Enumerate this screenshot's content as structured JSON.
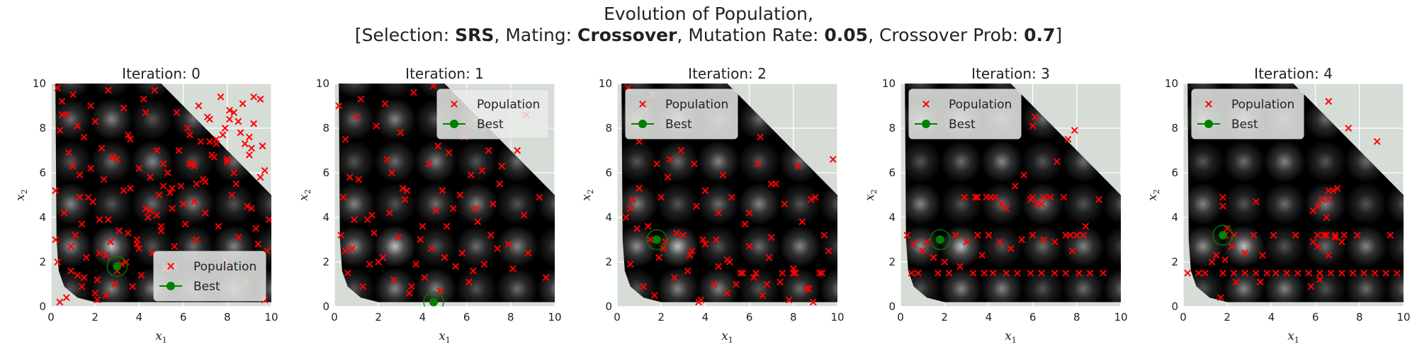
{
  "figure": {
    "title_line1": "Evolution of Population,",
    "title_line2": {
      "open": "[Selection: ",
      "selection": "SRS",
      "mating_label": ", Mating: ",
      "mating": "Crossover",
      "mutation_label": ", Mutation Rate: ",
      "mutation_rate": "0.05",
      "crossover_label": ", Crossover Prob: ",
      "crossover_prob": "0.7",
      "close": "]"
    }
  },
  "colors": {
    "population": "#ff0000",
    "best": "#008000",
    "axes_bg": "#d6dcd6",
    "grid": "#ffffff",
    "field_dark": "#000000",
    "peak_light": "#ffffff"
  },
  "chart_data": [
    {
      "type": "scatter",
      "title": "Iteration: 0",
      "xlabel": "x1",
      "ylabel": "x2",
      "xlim": [
        0,
        10
      ],
      "ylim": [
        0,
        10
      ],
      "xticks": [
        "0",
        "2",
        "4",
        "6",
        "8",
        "10"
      ],
      "yticks": [
        "0",
        "2",
        "4",
        "6",
        "8",
        "10"
      ],
      "grid": true,
      "legend": {
        "placement": "lower-right",
        "entries": [
          "Population",
          "Best"
        ]
      },
      "series": [
        {
          "name": "Population",
          "marker": "x",
          "x": [
            0.3,
            0.5,
            0.7,
            1.0,
            1.2,
            1.5,
            1.8,
            2.0,
            2.3,
            2.6,
            3.0,
            3.3,
            3.6,
            4.0,
            4.2,
            4.5,
            4.8,
            5.1,
            5.4,
            5.7,
            6.0,
            6.3,
            6.6,
            7.0,
            7.3,
            7.6,
            7.9,
            8.2,
            8.5,
            8.8,
            9.1,
            9.4,
            9.7,
            9.9,
            0.4,
            0.8,
            1.3,
            1.7,
            2.2,
            2.7,
            3.2,
            3.7,
            4.1,
            4.6,
            5.0,
            5.5,
            5.9,
            6.4,
            6.8,
            7.2,
            7.7,
            8.1,
            8.6,
            9.0,
            9.5,
            0.2,
            0.6,
            1.1,
            1.6,
            2.1,
            2.5,
            2.9,
            3.4,
            3.9,
            4.4,
            4.9,
            5.3,
            5.8,
            6.2,
            6.7,
            7.1,
            7.5,
            8.0,
            8.4,
            8.9,
            9.3,
            9.8,
            0.3,
            0.9,
            1.4,
            1.9,
            2.4,
            2.8,
            3.5,
            4.3,
            4.7,
            5.2,
            5.6,
            6.1,
            6.5,
            6.9,
            7.4,
            7.8,
            8.3,
            8.7,
            9.2,
            9.6,
            1.0,
            2.0,
            3.0,
            4.0,
            5.0,
            6.0,
            7.0,
            8.0,
            9.0,
            0.5,
            1.5,
            2.5,
            3.5,
            4.5,
            5.5,
            6.5,
            7.5,
            8.5,
            9.5,
            0.7,
            1.2,
            2.2,
            3.1,
            4.3,
            5.1,
            6.3,
            7.2,
            8.1,
            9.2,
            0.4,
            1.8,
            3.3,
            4.8,
            6.6,
            7.9,
            8.8,
            9.7,
            1.3,
            2.6,
            3.9,
            5.6,
            7.4,
            8.3,
            9.1,
            0.2,
            0.9,
            1.4,
            2.1,
            3.6
          ],
          "y": [
            9.8,
            9.2,
            8.6,
            9.5,
            8.1,
            7.6,
            9.0,
            8.3,
            7.1,
            9.7,
            6.6,
            8.9,
            7.5,
            6.2,
            9.3,
            5.8,
            7.0,
            6.4,
            5.1,
            8.7,
            4.6,
            7.7,
            5.5,
            4.2,
            6.8,
            3.6,
            8.0,
            5.0,
            3.1,
            7.3,
            4.4,
            2.8,
            6.1,
            3.9,
            7.9,
            6.9,
            5.9,
            4.9,
            3.9,
            2.9,
            1.9,
            0.9,
            1.4,
            2.4,
            3.4,
            4.4,
            5.4,
            6.4,
            7.4,
            8.4,
            9.4,
            8.8,
            7.8,
            6.8,
            5.8,
            5.2,
            4.2,
            3.2,
            2.2,
            1.2,
            0.5,
            1.0,
            2.0,
            3.0,
            4.0,
            5.0,
            6.0,
            7.0,
            8.0,
            9.0,
            8.5,
            7.5,
            6.5,
            5.5,
            4.5,
            3.5,
            2.5,
            2.0,
            2.7,
            3.7,
            4.7,
            5.7,
            6.7,
            7.7,
            8.7,
            9.7,
            1.7,
            2.7,
            3.7,
            4.7,
            5.7,
            6.7,
            7.7,
            8.7,
            9.1,
            8.2,
            7.2,
            6.3,
            0.6,
            1.6,
            2.6,
            3.6,
            4.6,
            5.6,
            6.6,
            7.6,
            8.6,
            1.3,
            2.3,
            3.3,
            4.3,
            5.3,
            6.3,
            7.3,
            8.3,
            9.3,
            0.4,
            1.4,
            2.4,
            3.4,
            4.4,
            5.4,
            6.4,
            7.4,
            8.4,
            9.4,
            0.2,
            6.2,
            5.2,
            4.1,
            3.0,
            2.1,
            1.1,
            0.3,
            4.9,
            3.9,
            2.8,
            1.8,
            0.8,
            6.0,
            7.1,
            3.0,
            1.6,
            0.9,
            0.3,
            5.3
          ]
        },
        {
          "name": "Best",
          "marker": "o",
          "x": [
            3.0
          ],
          "y": [
            1.8
          ]
        }
      ]
    },
    {
      "type": "scatter",
      "title": "Iteration: 1",
      "xlabel": "x1",
      "ylabel": "x2",
      "xlim": [
        0,
        10
      ],
      "ylim": [
        0,
        10
      ],
      "xticks": [
        "0",
        "2",
        "4",
        "6",
        "8",
        "10"
      ],
      "yticks": [
        "0",
        "2",
        "4",
        "6",
        "8",
        "10"
      ],
      "grid": true,
      "legend": {
        "placement": "upper-right",
        "entries": [
          "Population",
          "Best"
        ]
      },
      "series": [
        {
          "name": "Population",
          "marker": "x",
          "x": [
            0.2,
            0.5,
            1.2,
            1.9,
            2.4,
            3.0,
            3.6,
            4.3,
            0.4,
            1.1,
            1.7,
            2.6,
            3.3,
            4.0,
            4.7,
            5.4,
            6.2,
            7.0,
            7.6,
            8.3,
            0.3,
            0.8,
            1.5,
            2.2,
            2.9,
            3.7,
            4.4,
            5.1,
            5.8,
            6.5,
            7.2,
            7.9,
            8.6,
            9.3,
            0.6,
            1.3,
            2.0,
            2.7,
            3.4,
            4.1,
            4.8,
            5.5,
            6.1,
            6.8,
            7.4,
            8.1,
            8.8,
            9.6,
            1.0,
            2.3,
            3.1,
            4.5,
            5.2,
            6.0,
            6.7,
            7.5,
            0.9,
            1.8,
            3.2,
            4.6,
            5.7,
            6.4,
            7.1,
            0.7,
            2.5,
            3.9,
            5.0,
            6.3,
            0.5,
            1.6,
            3.5,
            4.9,
            8.7,
            5.9
          ],
          "y": [
            9.0,
            7.5,
            9.3,
            8.1,
            6.6,
            7.8,
            9.6,
            6.4,
            4.9,
            5.7,
            4.1,
            6.0,
            5.2,
            3.6,
            7.2,
            4.4,
            5.9,
            7.0,
            6.3,
            7.0,
            3.2,
            2.6,
            3.9,
            2.2,
            3.1,
            1.9,
            2.6,
            3.6,
            2.4,
            3.8,
            4.6,
            2.8,
            4.1,
            4.9,
            1.5,
            0.9,
            2.0,
            1.2,
            0.6,
            1.3,
            0.7,
            1.8,
            1.1,
            1.9,
            2.6,
            1.7,
            2.4,
            1.3,
            8.5,
            9.1,
            5.3,
            9.9,
            6.9,
            8.2,
            6.1,
            5.5,
            3.9,
            3.3,
            4.8,
            4.3,
            5.0,
            4.4,
            3.2,
            5.8,
            4.2,
            3.0,
            2.2,
            1.6,
            2.5,
            1.9,
            0.9,
            5.2,
            8.6,
            7.6
          ]
        },
        {
          "name": "Best",
          "marker": "o",
          "x": [
            4.5
          ],
          "y": [
            0.2
          ]
        }
      ]
    },
    {
      "type": "scatter",
      "title": "Iteration: 2",
      "xlabel": "x1",
      "ylabel": "x2",
      "xlim": [
        0,
        10
      ],
      "ylim": [
        0,
        10
      ],
      "xticks": [
        "0",
        "2",
        "4",
        "6",
        "8",
        "10"
      ],
      "yticks": [
        "0",
        "2",
        "4",
        "6",
        "8",
        "10"
      ],
      "grid": true,
      "legend": {
        "placement": "upper-left",
        "entries": [
          "Population",
          "Best"
        ]
      },
      "series": [
        {
          "name": "Population",
          "marker": "x",
          "x": [
            0.5,
            0.7,
            1.0,
            1.3,
            1.8,
            2.3,
            2.9,
            3.5,
            4.0,
            4.6,
            5.2,
            5.8,
            6.4,
            7.0,
            7.6,
            8.2,
            8.8,
            9.4,
            0.4,
            0.9,
            1.5,
            2.1,
            2.7,
            3.3,
            3.9,
            4.5,
            5.1,
            5.7,
            6.3,
            6.9,
            7.5,
            8.1,
            8.7,
            9.3,
            0.6,
            1.2,
            1.9,
            2.6,
            3.2,
            3.8,
            4.4,
            5.0,
            5.6,
            6.2,
            6.8,
            7.4,
            8.0,
            8.6,
            9.2,
            0.8,
            1.6,
            2.4,
            3.6,
            4.8,
            6.0,
            7.2,
            8.4,
            9.6,
            1.0,
            2.0,
            3.0,
            4.0,
            5.0,
            6.0,
            7.0,
            8.0,
            9.0,
            0.6,
            1.4,
            2.2,
            3.4,
            4.6,
            5.4,
            6.6,
            7.8,
            8.9,
            9.8,
            1.7,
            3.7,
            6.5
          ],
          "y": [
            9.8,
            4.8,
            7.4,
            8.8,
            6.4,
            5.8,
            7.0,
            6.4,
            5.2,
            4.2,
            4.9,
            3.7,
            6.4,
            5.5,
            4.6,
            6.3,
            4.8,
            3.2,
            4.0,
            3.5,
            3.0,
            2.6,
            3.3,
            2.3,
            3.0,
            3.0,
            2.0,
            1.5,
            1.5,
            2.2,
            1.5,
            1.5,
            0.8,
            1.5,
            1.9,
            0.9,
            2.2,
            1.3,
            1.6,
            0.3,
            1.0,
            0.6,
            1.5,
            1.3,
            1.0,
            1.1,
            1.5,
            0.8,
            1.5,
            8.0,
            9.5,
            6.6,
            4.5,
            5.9,
            4.2,
            5.5,
            3.8,
            2.5,
            5.3,
            4.9,
            3.2,
            2.8,
            2.1,
            2.7,
            3.1,
            1.7,
            4.9,
            4.4,
            3.6,
            2.9,
            2.5,
            1.8,
            1.0,
            0.5,
            0.3,
            0.2,
            6.6,
            0.5,
            0.2,
            7.6
          ],
          "x_extra": []
        },
        {
          "name": "Best",
          "marker": "o",
          "x": [
            1.8
          ],
          "y": [
            3.0
          ]
        }
      ]
    },
    {
      "type": "scatter",
      "title": "Iteration: 3",
      "xlabel": "x1",
      "ylabel": "x2",
      "xlim": [
        0,
        10
      ],
      "ylim": [
        0,
        10
      ],
      "xticks": [
        "0",
        "2",
        "4",
        "6",
        "8",
        "10"
      ],
      "yticks": [
        "0",
        "2",
        "4",
        "6",
        "8",
        "10"
      ],
      "grid": true,
      "legend": {
        "placement": "upper-left",
        "entries": [
          "Population",
          "Best"
        ]
      },
      "series": [
        {
          "name": "Population",
          "marker": "x",
          "x": [
            0.3,
            0.5,
            0.8,
            1.2,
            1.7,
            2.2,
            2.7,
            3.3,
            3.8,
            4.2,
            4.8,
            5.3,
            5.9,
            6.4,
            7.0,
            7.5,
            8.1,
            8.6,
            9.2,
            0.6,
            1.0,
            1.5,
            2.0,
            2.5,
            3.0,
            3.5,
            4.0,
            4.5,
            5.0,
            5.5,
            6.0,
            6.5,
            7.0,
            7.5,
            8.0,
            3.9,
            4.3,
            4.8,
            6.0,
            6.2,
            6.5,
            6.8,
            7.4,
            7.7,
            8.3,
            3.5,
            4.1,
            4.6,
            5.9,
            6.4,
            7.1,
            7.9,
            9.0,
            2.9,
            3.4,
            5.2,
            6.1,
            7.8,
            8.4,
            6.0,
            7.6,
            3.7,
            5.6
          ],
          "y": [
            3.2,
            1.5,
            1.5,
            2.9,
            1.5,
            1.5,
            1.8,
            1.5,
            1.5,
            1.5,
            1.5,
            1.5,
            1.5,
            1.5,
            1.5,
            1.5,
            1.5,
            1.5,
            1.5,
            2.8,
            2.5,
            2.2,
            2.0,
            3.2,
            2.9,
            3.2,
            3.2,
            2.9,
            2.6,
            3.0,
            3.2,
            3.0,
            2.9,
            3.2,
            3.2,
            4.9,
            4.9,
            4.4,
            4.9,
            4.6,
            4.9,
            4.9,
            4.9,
            3.2,
            3.2,
            4.9,
            4.9,
            4.6,
            4.8,
            4.6,
            6.5,
            7.9,
            4.8,
            4.9,
            4.9,
            5.4,
            8.5,
            2.5,
            3.6,
            8.1,
            7.5,
            2.3,
            5.9
          ]
        },
        {
          "name": "Best",
          "marker": "o",
          "x": [
            1.8
          ],
          "y": [
            3.0
          ]
        }
      ]
    },
    {
      "type": "scatter",
      "title": "Iteration: 4",
      "xlabel": "x1",
      "ylabel": "x2",
      "xlim": [
        0,
        10
      ],
      "ylim": [
        0,
        10
      ],
      "xticks": [
        "0",
        "2",
        "4",
        "6",
        "8",
        "10"
      ],
      "yticks": [
        "0",
        "2",
        "4",
        "6",
        "8",
        "10"
      ],
      "grid": true,
      "legend": {
        "placement": "upper-left",
        "entries": [
          "Population",
          "Best"
        ]
      },
      "series": [
        {
          "name": "Population",
          "marker": "x",
          "x": [
            0.2,
            0.7,
            1.0,
            1.3,
            1.8,
            2.3,
            2.8,
            3.3,
            3.8,
            4.2,
            4.7,
            5.2,
            5.7,
            6.2,
            6.7,
            7.2,
            7.7,
            8.2,
            8.7,
            9.2,
            9.7,
            1.5,
            1.9,
            2.3,
            3.2,
            4.1,
            5.1,
            6.1,
            6.4,
            6.5,
            6.9,
            7.3,
            7.9,
            9.4,
            1.9,
            2.2,
            2.8,
            3.6,
            5.9,
            6.1,
            6.6,
            6.9,
            7.2,
            1.8,
            3.3,
            5.9,
            6.1,
            6.3,
            6.6,
            6.6,
            6.8,
            7.0,
            1.7,
            2.4,
            3.5,
            5.8,
            6.2,
            1.8,
            6.5,
            8.8,
            2.0,
            7.5,
            6.6
          ],
          "y": [
            1.5,
            1.5,
            1.5,
            2.0,
            1.5,
            1.5,
            1.5,
            1.5,
            1.5,
            1.5,
            1.5,
            1.5,
            1.5,
            1.5,
            1.5,
            1.5,
            1.5,
            1.5,
            1.5,
            1.5,
            1.5,
            2.3,
            3.2,
            3.2,
            3.2,
            3.2,
            3.2,
            3.2,
            3.2,
            3.2,
            3.2,
            3.2,
            3.2,
            3.2,
            2.1,
            2.7,
            2.4,
            2.3,
            2.9,
            2.7,
            2.3,
            3.1,
            2.9,
            4.5,
            4.7,
            4.3,
            4.5,
            4.8,
            4.8,
            5.2,
            5.2,
            5.3,
            0.4,
            1.1,
            1.1,
            0.9,
            1.2,
            4.9,
            4.0,
            7.4,
            3.5,
            8.0,
            9.2
          ],
          "y_extra": []
        },
        {
          "name": "Best",
          "marker": "o",
          "x": [
            1.8
          ],
          "y": [
            3.2
          ]
        }
      ]
    }
  ]
}
